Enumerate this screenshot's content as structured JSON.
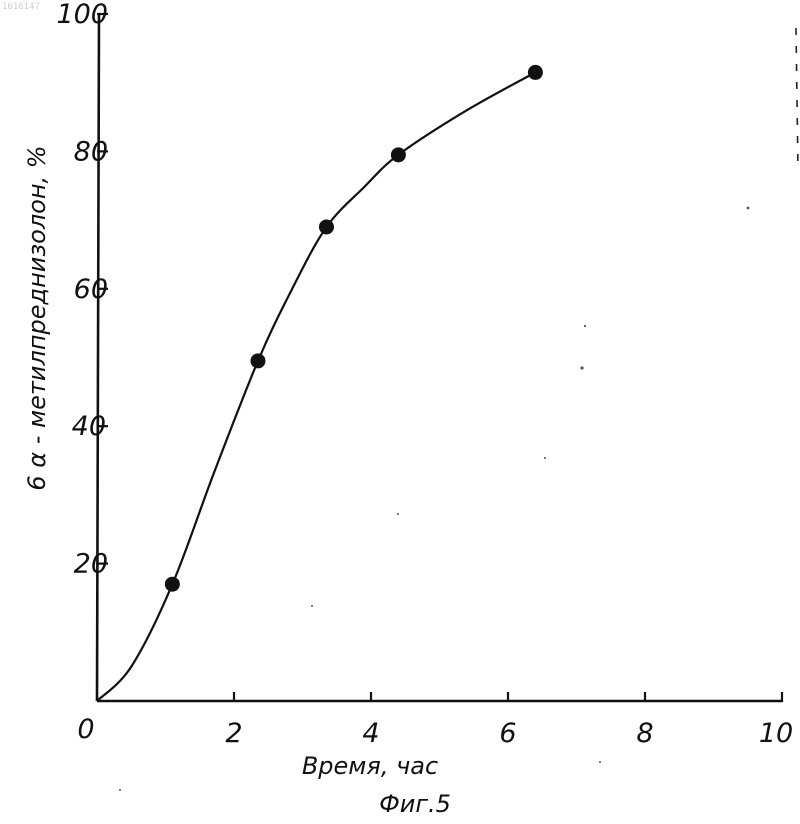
{
  "scan_id": "1616147",
  "chart_data": {
    "type": "line",
    "x": [
      1.1,
      2.35,
      3.35,
      4.4,
      6.4
    ],
    "y": [
      17,
      49.5,
      69,
      79.5,
      91.5
    ],
    "curve": {
      "x": [
        0,
        0.5,
        1.1,
        1.7,
        2.35,
        2.85,
        3.35,
        3.9,
        4.4,
        5.4,
        6.4
      ],
      "y": [
        0,
        5,
        17,
        33,
        49.5,
        60,
        69,
        74.8,
        79.5,
        86,
        91.5
      ]
    },
    "xlim": [
      0,
      10
    ],
    "ylim": [
      0,
      100
    ],
    "xticks": [
      "0",
      "2",
      "4",
      "6",
      "8",
      "10"
    ],
    "yticks": [
      "20",
      "40",
      "60",
      "80",
      "100"
    ],
    "xlabel": "Время, час",
    "ylabel": "6 α - метилпреднизолон, %",
    "caption": "Фиг.5",
    "grid": false,
    "marker": "filled-circle",
    "ink_color": "#111111"
  }
}
